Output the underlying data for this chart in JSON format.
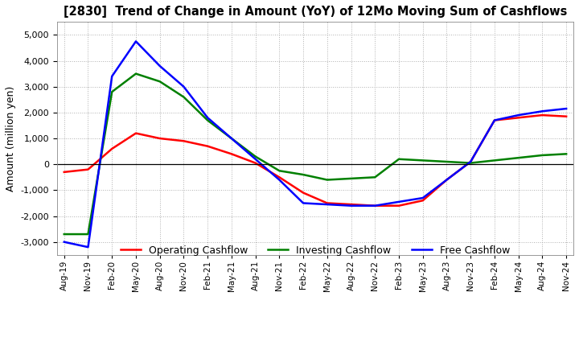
{
  "title": "[2830]  Trend of Change in Amount (YoY) of 12Mo Moving Sum of Cashflows",
  "ylabel": "Amount (million yen)",
  "ylim": [
    -3500,
    5500
  ],
  "yticks": [
    -3000,
    -2000,
    -1000,
    0,
    1000,
    2000,
    3000,
    4000,
    5000
  ],
  "x_labels": [
    "Aug-19",
    "Nov-19",
    "Feb-20",
    "May-20",
    "Aug-20",
    "Nov-20",
    "Feb-21",
    "May-21",
    "Aug-21",
    "Nov-21",
    "Feb-22",
    "May-22",
    "Aug-22",
    "Nov-22",
    "Feb-23",
    "May-23",
    "Aug-23",
    "Nov-23",
    "Feb-24",
    "May-24",
    "Aug-24",
    "Nov-24"
  ],
  "operating": [
    -300,
    -200,
    600,
    1200,
    1000,
    900,
    700,
    400,
    50,
    -500,
    -1100,
    -1500,
    -1550,
    -1600,
    -1600,
    -1400,
    -600,
    100,
    1700,
    1800,
    1900,
    1850
  ],
  "investing": [
    -2700,
    -2700,
    2800,
    3500,
    3200,
    2600,
    1700,
    1000,
    300,
    -250,
    -400,
    -600,
    -550,
    -500,
    200,
    150,
    100,
    50,
    150,
    250,
    350,
    400
  ],
  "free": [
    -3000,
    -3200,
    3400,
    4750,
    3800,
    3000,
    1800,
    1000,
    200,
    -600,
    -1500,
    -1550,
    -1600,
    -1600,
    -1450,
    -1300,
    -600,
    100,
    1700,
    1900,
    2050,
    2150
  ],
  "line_colors": {
    "operating": "#ff0000",
    "investing": "#008000",
    "free": "#0000ff"
  },
  "legend_labels": [
    "Operating Cashflow",
    "Investing Cashflow",
    "Free Cashflow"
  ],
  "background_color": "#ffffff",
  "grid_color": "#b0b0b0"
}
